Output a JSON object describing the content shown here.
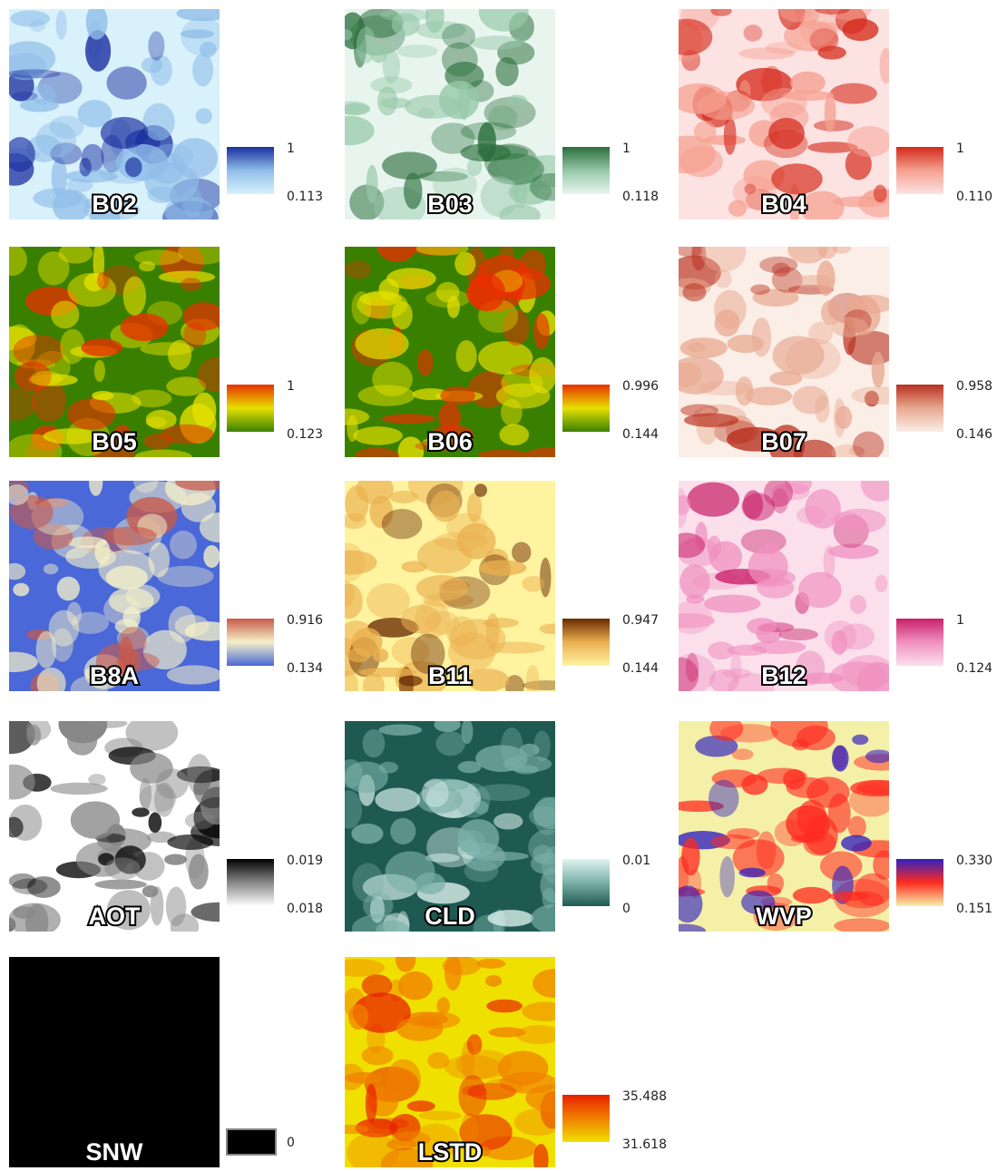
{
  "panels": [
    {
      "label": "B02",
      "max": "1",
      "min": "0.113",
      "colors": [
        "#d8f1fb",
        "#8fbde8",
        "#1a2fa0"
      ]
    },
    {
      "label": "B03",
      "max": "1",
      "min": "0.118",
      "colors": [
        "#e8f5ef",
        "#96c8a8",
        "#2a6e3a"
      ]
    },
    {
      "label": "B04",
      "max": "1",
      "min": "0.110",
      "colors": [
        "#fde2e2",
        "#f5a090",
        "#d42a1a"
      ]
    },
    {
      "label": "B05",
      "max": "1",
      "min": "0.123",
      "colors": [
        "#3a8000",
        "#e6e000",
        "#e83000"
      ]
    },
    {
      "label": "B06",
      "max": "0.996",
      "min": "0.144",
      "colors": [
        "#3a8000",
        "#e6e000",
        "#e83000"
      ]
    },
    {
      "label": "B07",
      "max": "0.958",
      "min": "0.146",
      "colors": [
        "#fbeee6",
        "#e8a890",
        "#b83020"
      ]
    },
    {
      "label": "B8A",
      "max": "0.916",
      "min": "0.134",
      "colors": [
        "#4a68d8",
        "#f4f0c8",
        "#c85a4a"
      ]
    },
    {
      "label": "B11",
      "max": "0.947",
      "min": "0.144",
      "colors": [
        "#fff3a0",
        "#eab050",
        "#6a2a00"
      ]
    },
    {
      "label": "B12",
      "max": "1",
      "min": "0.124",
      "colors": [
        "#fbe0ec",
        "#f090c0",
        "#c8206a"
      ]
    },
    {
      "label": "AOT",
      "max": "0.019",
      "min": "0.018",
      "colors": [
        "#ffffff",
        "#888888",
        "#000000"
      ]
    },
    {
      "label": "CLD",
      "max": "0.01",
      "min": "0",
      "colors": [
        "#1f5a52",
        "#7ab0a8",
        "#e0f4f0"
      ]
    },
    {
      "label": "WVP",
      "max": "0.330",
      "min": "0.151",
      "colors": [
        "#f4f0a8",
        "#ff2a20",
        "#3020c0"
      ]
    },
    {
      "label": "SNW",
      "min": "0",
      "colors": [
        "#000000",
        "#000000",
        "#000000"
      ]
    },
    {
      "label": "LSTD",
      "max": "35.488",
      "min": "31.618",
      "colors": [
        "#f0e000",
        "#f08000",
        "#e82000"
      ]
    }
  ]
}
